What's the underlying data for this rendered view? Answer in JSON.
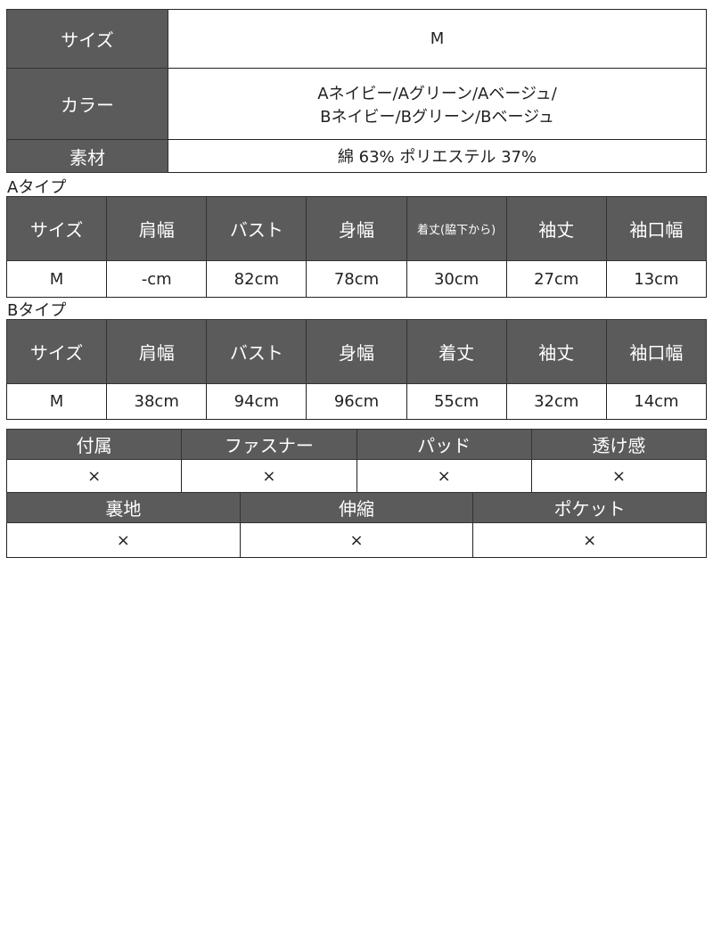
{
  "basic": {
    "size_label": "サイズ",
    "size_value": "M",
    "color_label": "カラー",
    "color_value_lines": [
      "Aネイビー/Aグリーン/Aベージュ/",
      "Bネイビー/Bグリーン/Bベージュ"
    ],
    "material_label": "素材",
    "material_value": "綿 63% ポリエステル 37%"
  },
  "type_a": {
    "title": "Aタイプ",
    "headers": [
      "サイズ",
      "肩幅",
      "バスト",
      "身幅",
      "着丈(脇下から)",
      "袖丈",
      "袖口幅"
    ],
    "row": [
      "M",
      "-cm",
      "82cm",
      "78cm",
      "30cm",
      "27cm",
      "13cm"
    ]
  },
  "type_b": {
    "title": "Bタイプ",
    "headers": [
      "サイズ",
      "肩幅",
      "バスト",
      "身幅",
      "着丈",
      "袖丈",
      "袖口幅"
    ],
    "row": [
      "M",
      "38cm",
      "94cm",
      "96cm",
      "55cm",
      "32cm",
      "14cm"
    ]
  },
  "features1": {
    "headers": [
      "付属",
      "ファスナー",
      "パッド",
      "透け感"
    ],
    "values": [
      "×",
      "×",
      "×",
      "×"
    ]
  },
  "features2": {
    "headers": [
      "裏地",
      "伸縮",
      "ポケット"
    ],
    "values": [
      "×",
      "×",
      "×"
    ]
  },
  "colors": {
    "header_bg": "#5b5b5b",
    "border": "#222222"
  }
}
